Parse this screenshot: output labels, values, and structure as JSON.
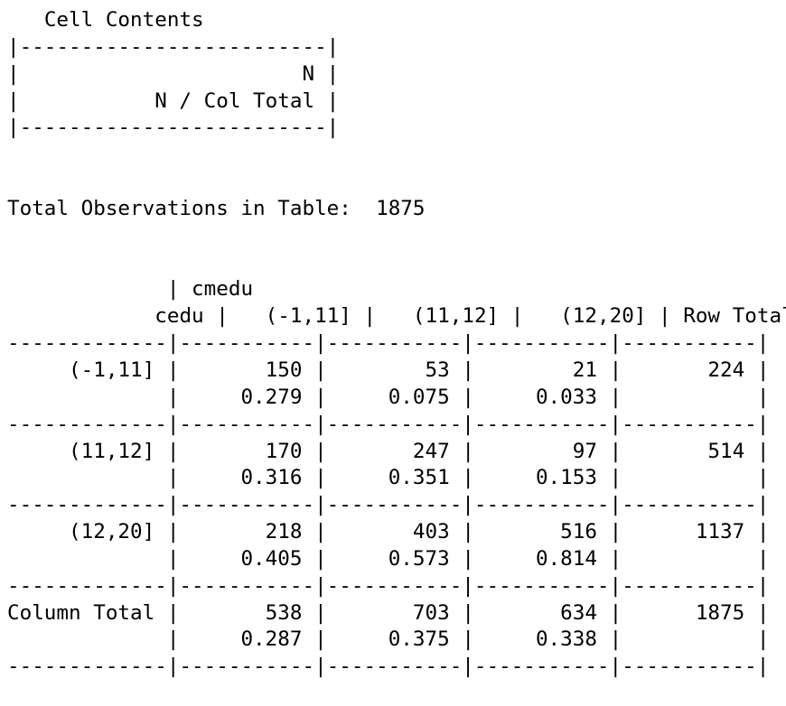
{
  "legend": {
    "title": "Cell Contents",
    "border_top": "|-------------------------|",
    "line_n": "|                       N |",
    "line_ncol": "|           N / Col Total |",
    "border_bottom": "|-------------------------|"
  },
  "total_observations": {
    "label": "Total Observations in Table:",
    "value": "1875"
  },
  "table": {
    "col_variable": "cmedu",
    "row_variable": "cedu",
    "columns": [
      "(-1,11]",
      "(11,12]",
      "(12,20]"
    ],
    "row_total_label": "Row Total",
    "column_total_label": "Column Total",
    "separator": "-------------|-----------|-----------|-----------|-----------|",
    "rows": [
      {
        "label": "(-1,11]",
        "counts": [
          "150",
          "53",
          "21"
        ],
        "proportions": [
          "0.279",
          "0.075",
          "0.033"
        ],
        "row_total": "224"
      },
      {
        "label": "(11,12]",
        "counts": [
          "170",
          "247",
          "97"
        ],
        "proportions": [
          "0.316",
          "0.351",
          "0.153"
        ],
        "row_total": "514"
      },
      {
        "label": "(12,20]",
        "counts": [
          "218",
          "403",
          "516"
        ],
        "proportions": [
          "0.405",
          "0.573",
          "0.814"
        ],
        "row_total": "1137"
      }
    ],
    "column_totals": {
      "counts": [
        "538",
        "703",
        "634"
      ],
      "proportions": [
        "0.287",
        "0.375",
        "0.338"
      ],
      "grand_total": "1875"
    }
  }
}
